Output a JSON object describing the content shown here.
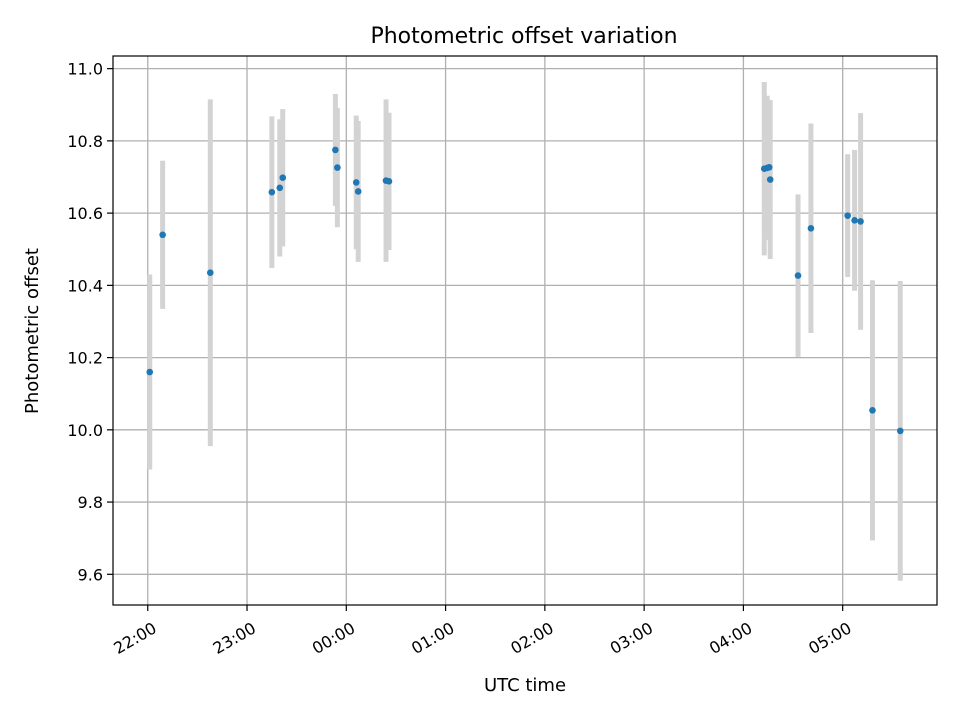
{
  "chart_data": {
    "type": "scatter",
    "title": "Photometric offset variation",
    "xlabel": "UTC time",
    "ylabel": "Photometric offset",
    "x_unit": "UTC time (hours, with times after midnight shown as 24 + h)",
    "xlim": [
      21.65,
      29.95
    ],
    "ylim": [
      9.515,
      11.035
    ],
    "grid": true,
    "x_ticks": [
      {
        "value": 22,
        "label": "22:00"
      },
      {
        "value": 23,
        "label": "23:00"
      },
      {
        "value": 24,
        "label": "00:00"
      },
      {
        "value": 25,
        "label": "01:00"
      },
      {
        "value": 26,
        "label": "02:00"
      },
      {
        "value": 27,
        "label": "03:00"
      },
      {
        "value": 28,
        "label": "04:00"
      },
      {
        "value": 29,
        "label": "05:00"
      }
    ],
    "y_ticks": [
      {
        "value": 9.6,
        "label": "9.6"
      },
      {
        "value": 9.8,
        "label": "9.8"
      },
      {
        "value": 10.0,
        "label": "10.0"
      },
      {
        "value": 10.2,
        "label": "10.2"
      },
      {
        "value": 10.4,
        "label": "10.4"
      },
      {
        "value": 10.6,
        "label": "10.6"
      },
      {
        "value": 10.8,
        "label": "10.8"
      },
      {
        "value": 11.0,
        "label": "11.0"
      }
    ],
    "marker_color": "#1f77b4",
    "errorbar_color": "#d3d3d3",
    "points": [
      {
        "x": 22.02,
        "y": 10.16,
        "err": 0.27
      },
      {
        "x": 22.15,
        "y": 10.54,
        "err": 0.205
      },
      {
        "x": 22.63,
        "y": 10.435,
        "err": 0.48
      },
      {
        "x": 23.25,
        "y": 10.658,
        "err": 0.21
      },
      {
        "x": 23.33,
        "y": 10.67,
        "err": 0.19
      },
      {
        "x": 23.36,
        "y": 10.698,
        "err": 0.19
      },
      {
        "x": 23.89,
        "y": 10.775,
        "err": 0.155
      },
      {
        "x": 23.91,
        "y": 10.726,
        "err": 0.165
      },
      {
        "x": 24.1,
        "y": 10.685,
        "err": 0.185
      },
      {
        "x": 24.12,
        "y": 10.66,
        "err": 0.195
      },
      {
        "x": 24.4,
        "y": 10.69,
        "err": 0.225
      },
      {
        "x": 24.43,
        "y": 10.688,
        "err": 0.19
      },
      {
        "x": 28.21,
        "y": 10.723,
        "err": 0.24
      },
      {
        "x": 28.24,
        "y": 10.725,
        "err": 0.2
      },
      {
        "x": 28.26,
        "y": 10.727,
        "err": 0.185
      },
      {
        "x": 28.27,
        "y": 10.693,
        "err": 0.22
      },
      {
        "x": 28.55,
        "y": 10.427,
        "err": 0.225
      },
      {
        "x": 28.68,
        "y": 10.558,
        "err": 0.29
      },
      {
        "x": 29.05,
        "y": 10.593,
        "err": 0.17
      },
      {
        "x": 29.12,
        "y": 10.58,
        "err": 0.195
      },
      {
        "x": 29.18,
        "y": 10.577,
        "err": 0.3
      },
      {
        "x": 29.3,
        "y": 10.054,
        "err": 0.36
      },
      {
        "x": 29.58,
        "y": 9.997,
        "err": 0.415
      }
    ]
  }
}
